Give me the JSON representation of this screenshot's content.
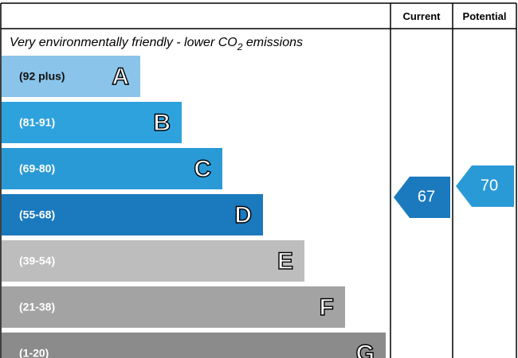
{
  "header": {
    "current": "Current",
    "potential": "Potential"
  },
  "title": {
    "text": "Very environmentally friendly - lower CO",
    "subscript": "2",
    "suffix": " emissions"
  },
  "bands": [
    {
      "range": "(92 plus)",
      "letter": "A",
      "color": "#8ac4ea"
    },
    {
      "range": "(81-91)",
      "letter": "B",
      "color": "#2ea2dd"
    },
    {
      "range": "(69-80)",
      "letter": "C",
      "color": "#2a9ad7"
    },
    {
      "range": "(55-68)",
      "letter": "D",
      "color": "#1b79be"
    },
    {
      "range": "(39-54)",
      "letter": "E",
      "color": "#bdbdbd"
    },
    {
      "range": "(21-38)",
      "letter": "F",
      "color": "#a3a3a3"
    },
    {
      "range": "(1-20)",
      "letter": "G",
      "color": "#8b8b8b"
    }
  ],
  "current": {
    "value": 67,
    "color": "#1b79be"
  },
  "potential": {
    "value": 70,
    "color": "#2a9ad7"
  }
}
